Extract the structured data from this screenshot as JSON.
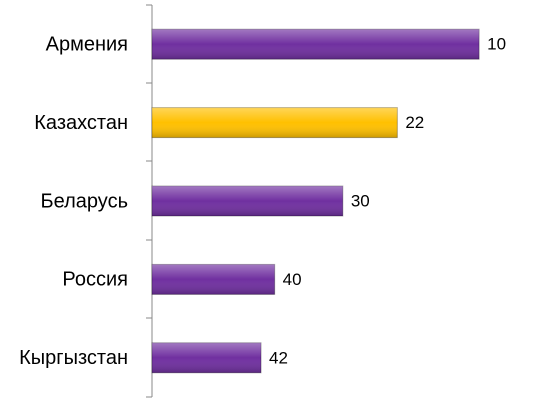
{
  "chart_data": {
    "type": "bar",
    "orientation": "horizontal",
    "categories": [
      "Армения",
      "Казахстан",
      "Беларусь",
      "Россия",
      "Кыргызстан"
    ],
    "values": [
      10,
      22,
      30,
      40,
      42
    ],
    "colors": [
      "#7030a0",
      "#ffc000",
      "#7030a0",
      "#7030a0",
      "#7030a0"
    ],
    "xlim": [
      58,
      4
    ]
  }
}
